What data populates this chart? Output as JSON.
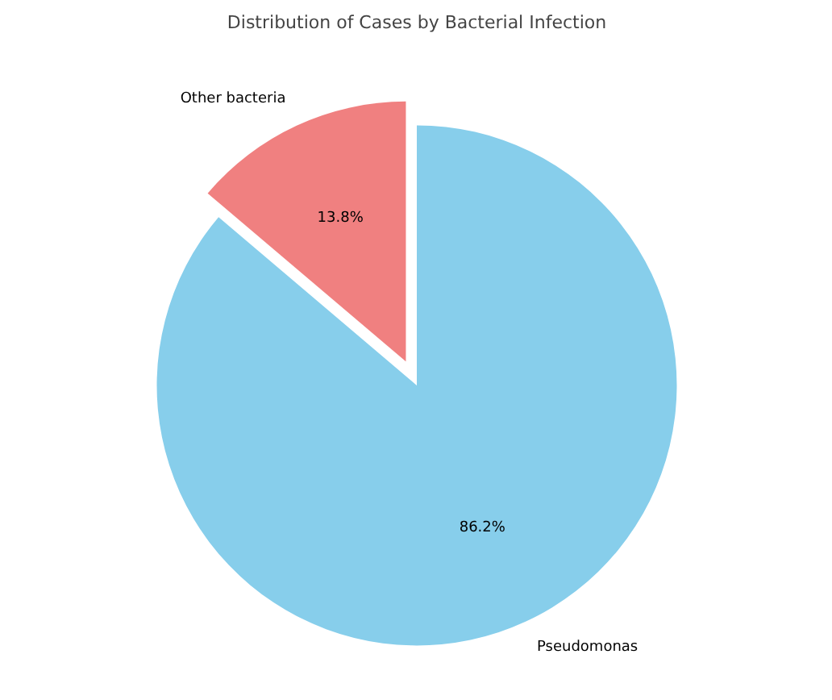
{
  "chart_data": {
    "type": "pie",
    "title": "Distribution of Cases by Bacterial Infection",
    "categories": [
      "Other bacteria",
      "Pseudomonas"
    ],
    "values": [
      13.8,
      86.2
    ],
    "colors": [
      "#f08080",
      "#87ceeb"
    ],
    "value_labels": [
      "13.8%",
      "86.2%"
    ]
  }
}
